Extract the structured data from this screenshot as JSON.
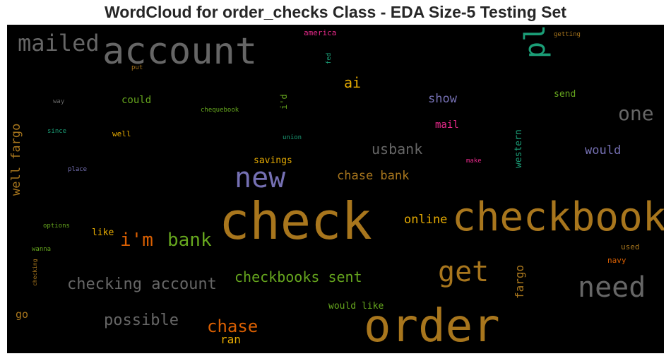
{
  "chart_data": {
    "type": "wordcloud",
    "title": "WordCloud for order_checks Class - EDA Size-5 Testing Set",
    "background": "#000000",
    "words": [
      {
        "text": "check",
        "size": 72,
        "color": "#a8761d",
        "vertical": false
      },
      {
        "text": "order",
        "size": 64,
        "color": "#a8761d",
        "vertical": false
      },
      {
        "text": "checkbook",
        "size": 56,
        "color": "#a8761d",
        "vertical": false
      },
      {
        "text": "account",
        "size": 52,
        "color": "#666666",
        "vertical": false
      },
      {
        "text": "please",
        "size": 40,
        "color": "#1b9e77",
        "vertical": true
      },
      {
        "text": "need",
        "size": 40,
        "color": "#666666",
        "vertical": false
      },
      {
        "text": "get",
        "size": 40,
        "color": "#a8761d",
        "vertical": false
      },
      {
        "text": "new",
        "size": 40,
        "color": "#7570b3",
        "vertical": false
      },
      {
        "text": "mailed",
        "size": 32,
        "color": "#666666",
        "vertical": false
      },
      {
        "text": "one",
        "size": 28,
        "color": "#666666",
        "vertical": false
      },
      {
        "text": "i'm",
        "size": 26,
        "color": "#d95f02",
        "vertical": false
      },
      {
        "text": "bank",
        "size": 26,
        "color": "#66a61e",
        "vertical": false
      },
      {
        "text": "chase",
        "size": 24,
        "color": "#d95f02",
        "vertical": false
      },
      {
        "text": "checking account",
        "size": 22,
        "color": "#666666",
        "vertical": false
      },
      {
        "text": "possible",
        "size": 22,
        "color": "#666666",
        "vertical": false
      },
      {
        "text": "usbank",
        "size": 20,
        "color": "#666666",
        "vertical": false
      },
      {
        "text": "checkbooks sent",
        "size": 20,
        "color": "#66a61e",
        "vertical": false
      },
      {
        "text": "ai",
        "size": 20,
        "color": "#e6ab02",
        "vertical": false
      },
      {
        "text": "chase bank",
        "size": 17,
        "color": "#a8761d",
        "vertical": false
      },
      {
        "text": "well fargo",
        "size": 17,
        "color": "#a8761d",
        "vertical": true
      },
      {
        "text": "would",
        "size": 17,
        "color": "#7570b3",
        "vertical": false
      },
      {
        "text": "show",
        "size": 17,
        "color": "#7570b3",
        "vertical": false
      },
      {
        "text": "online",
        "size": 17,
        "color": "#e6ab02",
        "vertical": false
      },
      {
        "text": "fargo",
        "size": 16,
        "color": "#a8761d",
        "vertical": true
      },
      {
        "text": "ran",
        "size": 16,
        "color": "#e6ab02",
        "vertical": false
      },
      {
        "text": "go",
        "size": 15,
        "color": "#a8761d",
        "vertical": false
      },
      {
        "text": "could",
        "size": 14,
        "color": "#66a61e",
        "vertical": false
      },
      {
        "text": "mail",
        "size": 14,
        "color": "#e7298a",
        "vertical": false
      },
      {
        "text": "send",
        "size": 13,
        "color": "#66a61e",
        "vertical": false
      },
      {
        "text": "savings",
        "size": 13,
        "color": "#e6ab02",
        "vertical": false
      },
      {
        "text": "western",
        "size": 13,
        "color": "#1b9e77",
        "vertical": true
      },
      {
        "text": "would like",
        "size": 13,
        "color": "#66a61e",
        "vertical": false
      },
      {
        "text": "like",
        "size": 13,
        "color": "#e6ab02",
        "vertical": false
      },
      {
        "text": "i'd",
        "size": 12,
        "color": "#66a61e",
        "vertical": true
      },
      {
        "text": "well",
        "size": 11,
        "color": "#e6ab02",
        "vertical": false
      },
      {
        "text": "navy",
        "size": 11,
        "color": "#d95f02",
        "vertical": false
      },
      {
        "text": "used",
        "size": 11,
        "color": "#a8761d",
        "vertical": false
      },
      {
        "text": "america",
        "size": 11,
        "color": "#e7298a",
        "vertical": false
      },
      {
        "text": "getting",
        "size": 9,
        "color": "#a8761d",
        "vertical": false
      },
      {
        "text": "put",
        "size": 9,
        "color": "#a8761d",
        "vertical": false
      },
      {
        "text": "fed",
        "size": 9,
        "color": "#1b9e77",
        "vertical": true
      },
      {
        "text": "way",
        "size": 9,
        "color": "#666666",
        "vertical": false
      },
      {
        "text": "chequebook",
        "size": 9,
        "color": "#66a61e",
        "vertical": false
      },
      {
        "text": "since",
        "size": 9,
        "color": "#1b9e77",
        "vertical": false
      },
      {
        "text": "union",
        "size": 9,
        "color": "#1b9e77",
        "vertical": false
      },
      {
        "text": "place",
        "size": 9,
        "color": "#7570b3",
        "vertical": false
      },
      {
        "text": "make",
        "size": 9,
        "color": "#e7298a",
        "vertical": false
      },
      {
        "text": "options",
        "size": 9,
        "color": "#66a61e",
        "vertical": false
      },
      {
        "text": "wanna",
        "size": 9,
        "color": "#66a61e",
        "vertical": false
      },
      {
        "text": "checking",
        "size": 8,
        "color": "#a8761d",
        "vertical": true
      }
    ]
  }
}
